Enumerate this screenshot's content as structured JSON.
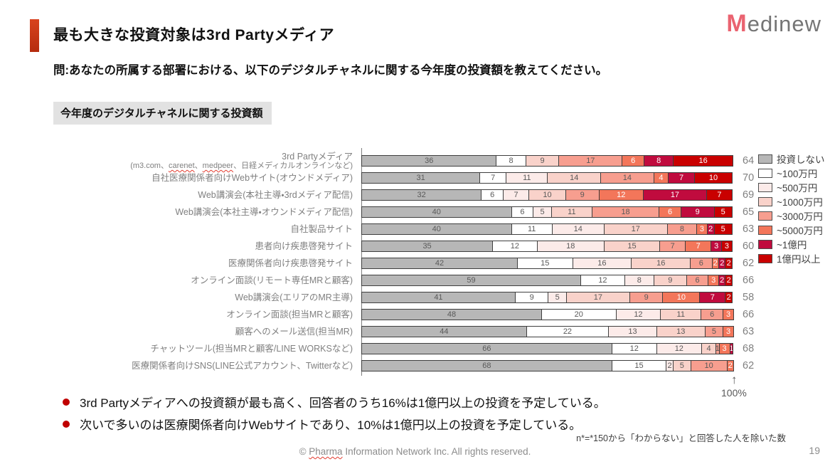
{
  "slide": {
    "title": "最も大きな投資対象は3rd Partyメディア",
    "question": "問:あなたの所属する部署における、以下のデジタルチャネルに関する今年度の投資額を教えてください。",
    "section_label": "今年度のデジタルチャネルに関する投資額",
    "logo": {
      "m": "M",
      "rest": "edinew"
    },
    "bullets": [
      "3rd Partyメディアへの投資額が最も高く、回答者のうち16%は1億円以上の投資を予定している。",
      "次いで多いのは医療関係者向けWebサイトであり、10%は1億円以上の投資を予定している。"
    ],
    "footnote": "n*=*150から「わからない」と回答した人を除いた数",
    "footer_parts": {
      "prefix": "© ",
      "spellchecked": "Pharma",
      "suffix": " Information Network Inc.  All rights reserved."
    },
    "page_number": "19",
    "axis_max_label": "100%",
    "axis_arrow": "↑"
  },
  "colors": {
    "accent": "#c93b17",
    "bullet_dot": "#c00000",
    "logo_m": "#ea6370",
    "bar_border": "#3f3f3f",
    "label_gray": "#808080"
  },
  "chart_data": {
    "type": "bar",
    "stacked": true,
    "orientation": "horizontal",
    "title": "今年度のデジタルチャネルに関する投資額",
    "x_unit": "%",
    "xlim": [
      0,
      100
    ],
    "legend_position": "right",
    "note": "values are % of respondents; right column is n per row",
    "legend": [
      {
        "key": "none",
        "label": "投資しない",
        "color": "#b7b7b7",
        "text": "#595959"
      },
      {
        "key": "u100",
        "label": "~100万円",
        "color": "#ffffff",
        "text": "#595959"
      },
      {
        "key": "u500",
        "label": "~500万円",
        "color": "#fcebe9",
        "text": "#595959"
      },
      {
        "key": "u1000",
        "label": "~1000万円",
        "color": "#f9d2ca",
        "text": "#595959"
      },
      {
        "key": "u3000",
        "label": "~3000万円",
        "color": "#f79e8f",
        "text": "#595959"
      },
      {
        "key": "u5000",
        "label": "~5000万円",
        "color": "#f3765a",
        "text": "#ffffff"
      },
      {
        "key": "u100m",
        "label": "~1億円",
        "color": "#c00b3e",
        "text": "#ffffff"
      },
      {
        "key": "o100m",
        "label": "1億円以上",
        "color": "#c90000",
        "text": "#ffffff"
      }
    ],
    "rows": [
      {
        "label": "3rd Partyメディア",
        "sublabel_parts": {
          "p1": "(m3.com、",
          "s1": "carenet",
          "p2": "、",
          "s2": "medpeer",
          "p3": "、日経メディカルオンラインなど)"
        },
        "n": 64,
        "segments": [
          {
            "k": "none",
            "v": 36
          },
          {
            "k": "u100",
            "v": 8
          },
          {
            "k": "u1000",
            "v": 9
          },
          {
            "k": "u3000",
            "v": 17
          },
          {
            "k": "u5000",
            "v": 6
          },
          {
            "k": "u100m",
            "v": 8
          },
          {
            "k": "o100m",
            "v": 16
          }
        ]
      },
      {
        "label": "自社医療関係者向けWebサイト(オウンドメディア)",
        "n": 70,
        "segments": [
          {
            "k": "none",
            "v": 31
          },
          {
            "k": "u100",
            "v": 7
          },
          {
            "k": "u500",
            "v": 11
          },
          {
            "k": "u1000",
            "v": 14
          },
          {
            "k": "u3000",
            "v": 14
          },
          {
            "k": "u5000",
            "v": 4
          },
          {
            "k": "u100m",
            "v": 7
          },
          {
            "k": "o100m",
            "v": 10
          }
        ]
      },
      {
        "label": "Web講演会(本社主導・3rdメディア配信)",
        "n": 69,
        "segments": [
          {
            "k": "none",
            "v": 32
          },
          {
            "k": "u100",
            "v": 6
          },
          {
            "k": "u500",
            "v": 7
          },
          {
            "k": "u1000",
            "v": 10
          },
          {
            "k": "u3000",
            "v": 9
          },
          {
            "k": "u5000",
            "v": 12
          },
          {
            "k": "u100m",
            "v": 17
          },
          {
            "k": "o100m",
            "v": 7
          }
        ]
      },
      {
        "label": "Web講演会(本社主導・オウンドメディア配信)",
        "n": 65,
        "segments": [
          {
            "k": "none",
            "v": 40
          },
          {
            "k": "u100",
            "v": 6
          },
          {
            "k": "u500",
            "v": 5
          },
          {
            "k": "u1000",
            "v": 11
          },
          {
            "k": "u3000",
            "v": 18
          },
          {
            "k": "u5000",
            "v": 6
          },
          {
            "k": "u100m",
            "v": 9
          },
          {
            "k": "o100m",
            "v": 5
          }
        ]
      },
      {
        "label": "自社製品サイト",
        "n": 63,
        "segments": [
          {
            "k": "none",
            "v": 40
          },
          {
            "k": "u100",
            "v": 11
          },
          {
            "k": "u500",
            "v": 14
          },
          {
            "k": "u1000",
            "v": 17
          },
          {
            "k": "u3000",
            "v": 8
          },
          {
            "k": "u5000",
            "v": 3
          },
          {
            "k": "u100m",
            "v": 2
          },
          {
            "k": "o100m",
            "v": 5
          }
        ]
      },
      {
        "label": "患者向け疾患啓発サイト",
        "n": 60,
        "segments": [
          {
            "k": "none",
            "v": 35
          },
          {
            "k": "u100",
            "v": 12
          },
          {
            "k": "u500",
            "v": 18
          },
          {
            "k": "u1000",
            "v": 15
          },
          {
            "k": "u3000",
            "v": 7
          },
          {
            "k": "u5000",
            "v": 7
          },
          {
            "k": "u100m",
            "v": 3
          },
          {
            "k": "o100m",
            "v": 3
          }
        ]
      },
      {
        "label": "医療関係者向け疾患啓発サイト",
        "n": 62,
        "segments": [
          {
            "k": "none",
            "v": 42
          },
          {
            "k": "u100",
            "v": 15
          },
          {
            "k": "u500",
            "v": 16
          },
          {
            "k": "u1000",
            "v": 16
          },
          {
            "k": "u3000",
            "v": 6
          },
          {
            "k": "u5000",
            "v": 2
          },
          {
            "k": "u100m",
            "v": 2
          },
          {
            "k": "o100m",
            "v": 2
          }
        ]
      },
      {
        "label": "オンライン面談(リモート専任MRと顧客)",
        "n": 66,
        "segments": [
          {
            "k": "none",
            "v": 59
          },
          {
            "k": "u100",
            "v": 12
          },
          {
            "k": "u500",
            "v": 8
          },
          {
            "k": "u1000",
            "v": 9
          },
          {
            "k": "u3000",
            "v": 6
          },
          {
            "k": "u5000",
            "v": 3
          },
          {
            "k": "u100m",
            "v": 2
          },
          {
            "k": "o100m",
            "v": 2
          }
        ]
      },
      {
        "label": "Web講演会(エリアのMR主導)",
        "n": 58,
        "segments": [
          {
            "k": "none",
            "v": 41
          },
          {
            "k": "u100",
            "v": 9
          },
          {
            "k": "u500",
            "v": 5
          },
          {
            "k": "u1000",
            "v": 17
          },
          {
            "k": "u3000",
            "v": 9
          },
          {
            "k": "u5000",
            "v": 10
          },
          {
            "k": "u100m",
            "v": 7
          },
          {
            "k": "o100m",
            "v": 2
          }
        ]
      },
      {
        "label": "オンライン面談(担当MRと顧客)",
        "n": 66,
        "segments": [
          {
            "k": "none",
            "v": 48
          },
          {
            "k": "u100",
            "v": 20
          },
          {
            "k": "u500",
            "v": 12
          },
          {
            "k": "u1000",
            "v": 11
          },
          {
            "k": "u3000",
            "v": 6
          },
          {
            "k": "u5000",
            "v": 3
          }
        ]
      },
      {
        "label": "顧客へのメール送信(担当MR)",
        "n": 63,
        "segments": [
          {
            "k": "none",
            "v": 44
          },
          {
            "k": "u100",
            "v": 22
          },
          {
            "k": "u500",
            "v": 13
          },
          {
            "k": "u1000",
            "v": 13
          },
          {
            "k": "u3000",
            "v": 5
          },
          {
            "k": "u5000",
            "v": 3
          }
        ]
      },
      {
        "label": "チャットツール(担当MRと顧客/LINE WORKSなど)",
        "n": 68,
        "segments": [
          {
            "k": "none",
            "v": 66
          },
          {
            "k": "u100",
            "v": 12
          },
          {
            "k": "u500",
            "v": 12
          },
          {
            "k": "u1000",
            "v": 4
          },
          {
            "k": "u3000",
            "v": 1
          },
          {
            "k": "u5000",
            "v": 3
          },
          {
            "k": "u100m",
            "v": 1
          }
        ]
      },
      {
        "label": "医療関係者向けSNS(LINE公式アカウント、Twitterなど)",
        "n": 62,
        "segments": [
          {
            "k": "none",
            "v": 68
          },
          {
            "k": "u100",
            "v": 15
          },
          {
            "k": "u500",
            "v": 2
          },
          {
            "k": "u1000",
            "v": 5
          },
          {
            "k": "u3000",
            "v": 10
          },
          {
            "k": "u5000",
            "v": 2
          }
        ]
      }
    ]
  }
}
